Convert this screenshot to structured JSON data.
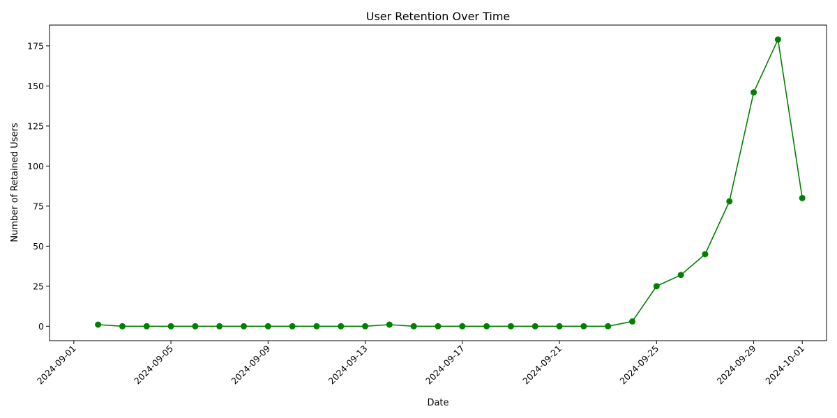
{
  "chart_data": {
    "type": "line",
    "title": "User Retention Over Time",
    "xlabel": "Date",
    "ylabel": "Number of Retained Users",
    "x_ticks": [
      "2024-09-01",
      "2024-09-05",
      "2024-09-09",
      "2024-09-13",
      "2024-09-17",
      "2024-09-21",
      "2024-09-25",
      "2024-09-29",
      "2024-10-01"
    ],
    "y_ticks": [
      0,
      25,
      50,
      75,
      100,
      125,
      150,
      175
    ],
    "xlim": [
      "2024-08-31",
      "2024-10-02"
    ],
    "ylim": [
      -9,
      188
    ],
    "grid": false,
    "color": "#008000",
    "marker": "circle",
    "x": [
      "2024-09-02",
      "2024-09-03",
      "2024-09-04",
      "2024-09-05",
      "2024-09-06",
      "2024-09-07",
      "2024-09-08",
      "2024-09-09",
      "2024-09-10",
      "2024-09-11",
      "2024-09-12",
      "2024-09-13",
      "2024-09-14",
      "2024-09-15",
      "2024-09-16",
      "2024-09-17",
      "2024-09-18",
      "2024-09-19",
      "2024-09-20",
      "2024-09-21",
      "2024-09-22",
      "2024-09-23",
      "2024-09-24",
      "2024-09-25",
      "2024-09-26",
      "2024-09-27",
      "2024-09-28",
      "2024-09-29",
      "2024-09-30",
      "2024-10-01"
    ],
    "values": [
      1,
      0,
      0,
      0,
      0,
      0,
      0,
      0,
      0,
      0,
      0,
      0,
      1,
      0,
      0,
      0,
      0,
      0,
      0,
      0,
      0,
      0,
      3,
      25,
      32,
      45,
      78,
      146,
      179,
      80
    ]
  }
}
